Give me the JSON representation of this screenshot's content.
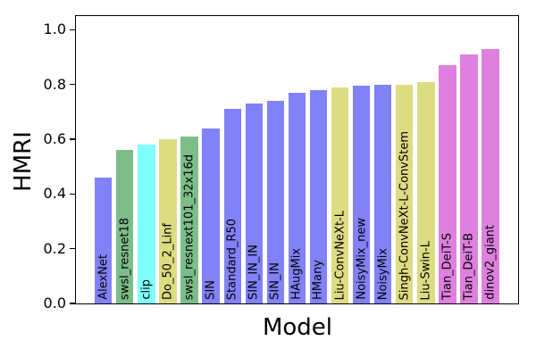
{
  "chart_data": {
    "type": "bar",
    "title": "",
    "xlabel": "Model",
    "ylabel": "HMRI",
    "ylim": [
      0,
      1.05
    ],
    "grid": false,
    "legend": null,
    "bar_label_rotation": 90,
    "yticks": [
      {
        "value": 0.0,
        "label": "0.0"
      },
      {
        "value": 0.2,
        "label": "0.2"
      },
      {
        "value": 0.4,
        "label": "0.4"
      },
      {
        "value": 0.6,
        "label": "0.6"
      },
      {
        "value": 0.8,
        "label": "0.8"
      },
      {
        "value": 1.0,
        "label": "1.0"
      }
    ],
    "palette": {
      "blue": "#8181f8",
      "green": "#7dbd89",
      "cyan": "#80ffff",
      "khaki": "#dddc82",
      "pink": "#df80df"
    },
    "categories": [
      "AlexNet",
      "swsl_resnet18",
      "clip",
      "Do_50_2_Linf",
      "swsl_resnext101_32x16d",
      "SIN",
      "Standard_R50",
      "SIN_IN_IN",
      "SIN_IN",
      "HAugMix",
      "HMany",
      "Liu-ConvNeXt-L",
      "NoisyMix_new",
      "NoisyMix",
      "Singh-ConvNeXt-L-ConvStem",
      "Liu-Swin-L",
      "Tian_DeiT-S",
      "Tian_DeiT-B",
      "dinov2_giant"
    ],
    "values": [
      0.46,
      0.56,
      0.58,
      0.6,
      0.61,
      0.64,
      0.71,
      0.73,
      0.74,
      0.77,
      0.78,
      0.79,
      0.795,
      0.8,
      0.8,
      0.81,
      0.87,
      0.91,
      0.93
    ],
    "bar_color_keys": [
      "blue",
      "green",
      "cyan",
      "khaki",
      "green",
      "blue",
      "blue",
      "blue",
      "blue",
      "blue",
      "blue",
      "khaki",
      "blue",
      "blue",
      "khaki",
      "khaki",
      "pink",
      "pink",
      "pink"
    ]
  }
}
